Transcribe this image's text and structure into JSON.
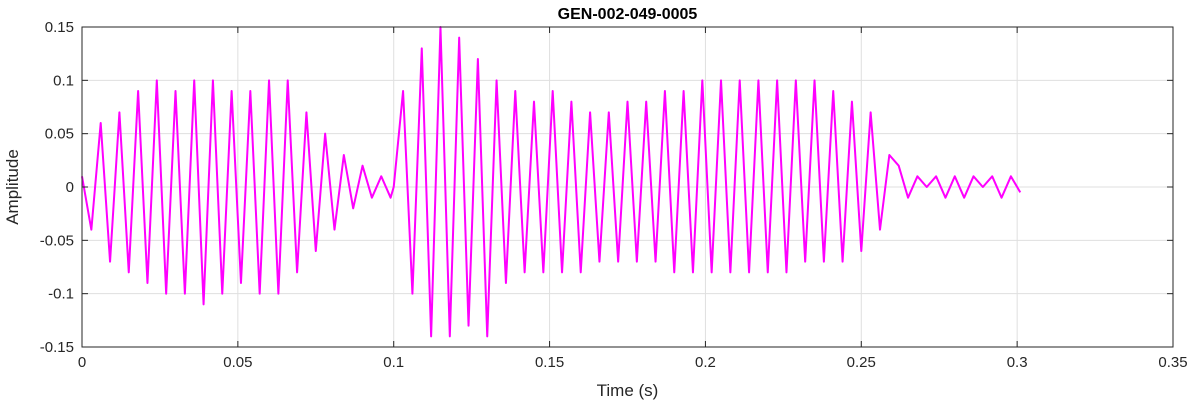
{
  "chart_data": {
    "type": "line",
    "title": "GEN-002-049-0005",
    "xlabel": "Time (s)",
    "ylabel": "Amplitude",
    "xlim": [
      0,
      0.35
    ],
    "ylim": [
      -0.15,
      0.15
    ],
    "grid": true,
    "x_ticks": [
      0,
      0.05,
      0.1,
      0.15,
      0.2,
      0.25,
      0.3,
      0.35
    ],
    "x_tick_labels": [
      "0",
      "0.05",
      "0.1",
      "0.15",
      "0.2",
      "0.25",
      "0.3",
      "0.35"
    ],
    "y_ticks": [
      -0.15,
      -0.1,
      -0.05,
      0,
      0.05,
      0.1,
      0.15
    ],
    "y_tick_labels": [
      "-0.15",
      "-0.1",
      "-0.05",
      "0",
      "0.05",
      "0.1",
      "0.15"
    ],
    "series": [
      {
        "color": "#ff00ff",
        "x": [
          0,
          0.003,
          0.006,
          0.009,
          0.012,
          0.015,
          0.018,
          0.021,
          0.024,
          0.027,
          0.03,
          0.033,
          0.036,
          0.039,
          0.042,
          0.045,
          0.048,
          0.051,
          0.054,
          0.057,
          0.06,
          0.063,
          0.066,
          0.069,
          0.072,
          0.075,
          0.078,
          0.081,
          0.084,
          0.087,
          0.09,
          0.093,
          0.096,
          0.099,
          0.1,
          0.103,
          0.106,
          0.109,
          0.112,
          0.115,
          0.118,
          0.121,
          0.124,
          0.127,
          0.13,
          0.133,
          0.136,
          0.139,
          0.142,
          0.145,
          0.148,
          0.151,
          0.154,
          0.157,
          0.16,
          0.163,
          0.166,
          0.169,
          0.172,
          0.175,
          0.178,
          0.181,
          0.184,
          0.187,
          0.19,
          0.193,
          0.196,
          0.199,
          0.202,
          0.205,
          0.208,
          0.211,
          0.214,
          0.217,
          0.22,
          0.223,
          0.226,
          0.229,
          0.232,
          0.235,
          0.238,
          0.241,
          0.244,
          0.247,
          0.25,
          0.253,
          0.256,
          0.259,
          0.262,
          0.265,
          0.268,
          0.271,
          0.274,
          0.277,
          0.28,
          0.283,
          0.286,
          0.289,
          0.292,
          0.295,
          0.298,
          0.301
        ],
        "y": [
          0.01,
          -0.04,
          0.06,
          -0.07,
          0.07,
          -0.08,
          0.09,
          -0.09,
          0.1,
          -0.1,
          0.09,
          -0.1,
          0.1,
          -0.11,
          0.1,
          -0.1,
          0.09,
          -0.09,
          0.09,
          -0.1,
          0.1,
          -0.1,
          0.1,
          -0.08,
          0.07,
          -0.06,
          0.05,
          -0.04,
          0.03,
          -0.02,
          0.02,
          -0.01,
          0.01,
          -0.01,
          0.0,
          0.09,
          -0.1,
          0.13,
          -0.14,
          0.15,
          -0.14,
          0.14,
          -0.13,
          0.12,
          -0.14,
          0.1,
          -0.09,
          0.09,
          -0.08,
          0.08,
          -0.08,
          0.09,
          -0.08,
          0.08,
          -0.08,
          0.07,
          -0.07,
          0.07,
          -0.07,
          0.08,
          -0.07,
          0.08,
          -0.07,
          0.09,
          -0.08,
          0.09,
          -0.08,
          0.1,
          -0.08,
          0.1,
          -0.08,
          0.1,
          -0.08,
          0.1,
          -0.08,
          0.1,
          -0.08,
          0.1,
          -0.07,
          0.1,
          -0.07,
          0.09,
          -0.07,
          0.08,
          -0.06,
          0.07,
          -0.04,
          0.03,
          0.02,
          -0.01,
          0.01,
          0.0,
          0.01,
          -0.01,
          0.01,
          -0.01,
          0.01,
          0.0,
          0.01,
          -0.01,
          0.01,
          -0.005
        ]
      }
    ]
  }
}
